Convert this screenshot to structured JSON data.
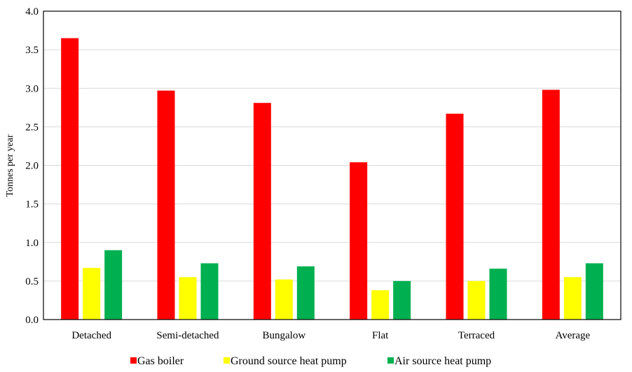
{
  "chart_data": {
    "type": "bar",
    "title": "",
    "xlabel": "",
    "ylabel": "Tonnes per year",
    "ylim": [
      0,
      4
    ],
    "y_ticks": [
      "0.0",
      "0.5",
      "1.0",
      "1.5",
      "2.0",
      "2.5",
      "3.0",
      "3.5",
      "4.0"
    ],
    "grid": true,
    "legend_position": "bottom",
    "categories": [
      "Detached",
      "Semi-detached",
      "Bungalow",
      "Flat",
      "Terraced",
      "Average"
    ],
    "series": [
      {
        "name": "Gas boiler",
        "color": "#ff0000",
        "values": [
          3.65,
          2.97,
          2.81,
          2.04,
          2.67,
          2.98
        ]
      },
      {
        "name": "Ground source heat pump",
        "color": "#ffff00",
        "values": [
          0.67,
          0.55,
          0.52,
          0.38,
          0.5,
          0.55
        ]
      },
      {
        "name": "Air source heat pump",
        "color": "#00b050",
        "values": [
          0.9,
          0.73,
          0.69,
          0.5,
          0.66,
          0.73
        ]
      }
    ]
  }
}
